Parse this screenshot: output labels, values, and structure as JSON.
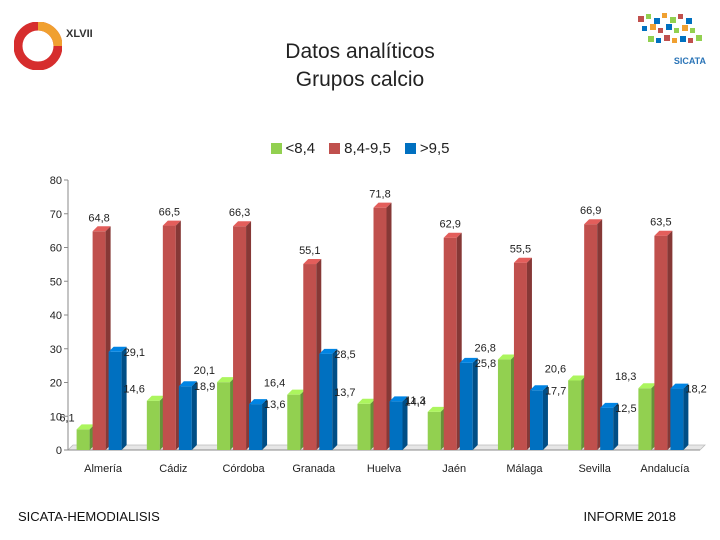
{
  "header": {
    "title_line1": "Datos analíticos",
    "title_line2": "Grupos calcio",
    "logo_left_text": "XLVII",
    "logo_right_text": "SICATA"
  },
  "legend": [
    {
      "label": "<8,4",
      "color": "#92D050"
    },
    {
      "label": "8,4-9,5",
      "color": "#C0504D"
    },
    {
      "label": ">9,5",
      "color": "#0070C0"
    }
  ],
  "chart_data": {
    "type": "bar",
    "title": "Datos analíticos Grupos calcio",
    "categories": [
      "Almería",
      "Cádiz",
      "Córdoba",
      "Granada",
      "Huelva",
      "Jaén",
      "Málaga",
      "Sevilla",
      "Andalucía"
    ],
    "series": [
      {
        "name": "<8,4",
        "color": "#92D050",
        "values": [
          6.1,
          14.6,
          20.1,
          16.4,
          13.7,
          11.3,
          26.8,
          20.6,
          18.3
        ]
      },
      {
        "name": "8,4-9,5",
        "color": "#C0504D",
        "values": [
          64.8,
          66.5,
          66.3,
          55.1,
          71.8,
          62.9,
          55.5,
          66.9,
          63.5
        ]
      },
      {
        "name": ">9,5",
        "color": "#0070C0",
        "values": [
          29.1,
          18.9,
          13.6,
          28.5,
          14.4,
          25.8,
          17.7,
          12.5,
          18.2
        ]
      }
    ],
    "value_labels": [
      [
        "6,1",
        "14,6",
        "20,1",
        "16,4",
        "13,7",
        "11,3",
        "26,8",
        "20,6",
        "18,3"
      ],
      [
        "64,8",
        "66,5",
        "66,3",
        "55,1",
        "71,8",
        "62,9",
        "55,5",
        "66,9",
        "63,5"
      ],
      [
        "29,1",
        "18,9",
        "13,6",
        "28,5",
        "14,4",
        "25,8",
        "17,7",
        "12,5",
        "18,2"
      ]
    ],
    "y_ticks": [
      "0",
      "10",
      "20",
      "30",
      "40",
      "50",
      "60",
      "70",
      "80"
    ],
    "ylim": [
      0,
      80
    ],
    "xlabel": "",
    "ylabel": "",
    "legend_position": "top-center"
  },
  "footer": {
    "left": "SICATA-HEMODIALISIS",
    "right": "INFORME 2018"
  }
}
